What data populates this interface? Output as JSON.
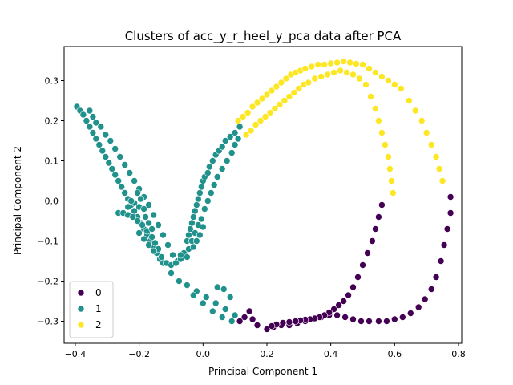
{
  "chart_data": {
    "type": "scatter",
    "title": "Clusters of acc_y_r_heel_y_pca data after PCA",
    "xlabel": "Principal Component 1",
    "ylabel": "Principal Component 2",
    "xlim": [
      -0.435,
      0.81
    ],
    "ylim": [
      -0.355,
      0.385
    ],
    "xticks": [
      -0.4,
      -0.2,
      0.0,
      0.2,
      0.4,
      0.6,
      0.8
    ],
    "xtick_labels": [
      "−0.4",
      "−0.2",
      "0.0",
      "0.2",
      "0.4",
      "0.6",
      "0.8"
    ],
    "yticks": [
      -0.3,
      -0.2,
      -0.1,
      0.0,
      0.1,
      0.2,
      0.3
    ],
    "ytick_labels": [
      "−0.3",
      "−0.2",
      "−0.1",
      "0.0",
      "0.1",
      "0.2",
      "0.3"
    ],
    "grid": false,
    "legend_position": "lower-left",
    "series": [
      {
        "name": "0",
        "color": "#440154",
        "points": [
          [
            0.775,
            0.01
          ],
          [
            0.775,
            -0.03
          ],
          [
            0.765,
            -0.07
          ],
          [
            0.755,
            -0.11
          ],
          [
            0.745,
            -0.15
          ],
          [
            0.73,
            -0.19
          ],
          [
            0.715,
            -0.22
          ],
          [
            0.695,
            -0.245
          ],
          [
            0.675,
            -0.265
          ],
          [
            0.65,
            -0.28
          ],
          [
            0.625,
            -0.29
          ],
          [
            0.6,
            -0.295
          ],
          [
            0.575,
            -0.3
          ],
          [
            0.55,
            -0.3
          ],
          [
            0.52,
            -0.3
          ],
          [
            0.495,
            -0.3
          ],
          [
            0.47,
            -0.295
          ],
          [
            0.445,
            -0.29
          ],
          [
            0.42,
            -0.285
          ],
          [
            0.395,
            -0.285
          ],
          [
            0.37,
            -0.29
          ],
          [
            0.345,
            -0.295
          ],
          [
            0.32,
            -0.3
          ],
          [
            0.295,
            -0.305
          ],
          [
            0.27,
            -0.31
          ],
          [
            0.245,
            -0.31
          ],
          [
            0.22,
            -0.315
          ],
          [
            0.2,
            -0.32
          ],
          [
            0.56,
            -0.01
          ],
          [
            0.55,
            -0.04
          ],
          [
            0.54,
            -0.07
          ],
          [
            0.53,
            -0.1
          ],
          [
            0.515,
            -0.13
          ],
          [
            0.5,
            -0.16
          ],
          [
            0.485,
            -0.19
          ],
          [
            0.47,
            -0.215
          ],
          [
            0.455,
            -0.235
          ],
          [
            0.44,
            -0.25
          ],
          [
            0.425,
            -0.26
          ],
          [
            0.41,
            -0.27
          ],
          [
            0.395,
            -0.278
          ],
          [
            0.38,
            -0.285
          ],
          [
            0.365,
            -0.29
          ],
          [
            0.35,
            -0.293
          ],
          [
            0.335,
            -0.295
          ],
          [
            0.32,
            -0.296
          ],
          [
            0.305,
            -0.298
          ],
          [
            0.29,
            -0.3
          ],
          [
            0.27,
            -0.302
          ],
          [
            0.25,
            -0.304
          ],
          [
            0.23,
            -0.308
          ],
          [
            0.215,
            -0.312
          ],
          [
            0.17,
            -0.31
          ],
          [
            0.155,
            -0.295
          ],
          [
            0.145,
            -0.275
          ],
          [
            0.13,
            -0.29
          ],
          [
            0.115,
            -0.3
          ]
        ]
      },
      {
        "name": "1",
        "color": "#21918c",
        "points": [
          [
            -0.395,
            0.235
          ],
          [
            -0.385,
            0.225
          ],
          [
            -0.375,
            0.215
          ],
          [
            -0.365,
            0.2
          ],
          [
            -0.355,
            0.185
          ],
          [
            -0.345,
            0.17
          ],
          [
            -0.335,
            0.155
          ],
          [
            -0.325,
            0.14
          ],
          [
            -0.315,
            0.125
          ],
          [
            -0.305,
            0.11
          ],
          [
            -0.295,
            0.095
          ],
          [
            -0.285,
            0.08
          ],
          [
            -0.275,
            0.065
          ],
          [
            -0.265,
            0.05
          ],
          [
            -0.255,
            0.035
          ],
          [
            -0.245,
            0.02
          ],
          [
            -0.235,
            0.005
          ],
          [
            -0.225,
            -0.01
          ],
          [
            -0.215,
            -0.025
          ],
          [
            -0.205,
            -0.04
          ],
          [
            -0.195,
            -0.055
          ],
          [
            -0.185,
            -0.07
          ],
          [
            -0.175,
            -0.085
          ],
          [
            -0.165,
            -0.1
          ],
          [
            -0.155,
            -0.115
          ],
          [
            -0.145,
            -0.13
          ],
          [
            -0.135,
            -0.145
          ],
          [
            -0.125,
            -0.155
          ],
          [
            -0.355,
            0.225
          ],
          [
            -0.345,
            0.21
          ],
          [
            -0.335,
            0.195
          ],
          [
            -0.32,
            0.185
          ],
          [
            -0.305,
            0.165
          ],
          [
            -0.29,
            0.15
          ],
          [
            -0.275,
            0.13
          ],
          [
            -0.26,
            0.11
          ],
          [
            -0.245,
            0.09
          ],
          [
            -0.23,
            0.07
          ],
          [
            -0.215,
            0.05
          ],
          [
            -0.2,
            0.03
          ],
          [
            -0.185,
            0.01
          ],
          [
            -0.17,
            -0.01
          ],
          [
            -0.155,
            -0.035
          ],
          [
            -0.14,
            -0.06
          ],
          [
            -0.125,
            -0.085
          ],
          [
            -0.11,
            -0.11
          ],
          [
            -0.095,
            -0.135
          ],
          [
            -0.08,
            -0.15
          ],
          [
            -0.265,
            -0.03
          ],
          [
            -0.25,
            -0.03
          ],
          [
            -0.235,
            -0.035
          ],
          [
            -0.22,
            -0.04
          ],
          [
            -0.205,
            -0.05
          ],
          [
            -0.19,
            -0.06
          ],
          [
            -0.175,
            -0.075
          ],
          [
            -0.16,
            -0.09
          ],
          [
            -0.15,
            -0.105
          ],
          [
            -0.14,
            -0.12
          ],
          [
            -0.13,
            -0.14
          ],
          [
            -0.115,
            -0.155
          ],
          [
            -0.1,
            -0.16
          ],
          [
            -0.085,
            -0.155
          ],
          [
            -0.07,
            -0.145
          ],
          [
            -0.055,
            -0.13
          ],
          [
            -0.2,
            -0.015
          ],
          [
            -0.195,
            0.005
          ],
          [
            -0.205,
            0.02
          ],
          [
            -0.215,
            -0.005
          ],
          [
            -0.185,
            -0.02
          ],
          [
            -0.225,
            0.0
          ],
          [
            -0.235,
            -0.015
          ],
          [
            -0.18,
            -0.04
          ],
          [
            -0.17,
            -0.055
          ],
          [
            -0.16,
            -0.07
          ],
          [
            -0.2,
            -0.08
          ],
          [
            -0.185,
            -0.095
          ],
          [
            -0.17,
            -0.11
          ],
          [
            -0.155,
            -0.125
          ],
          [
            -0.05,
            -0.1
          ],
          [
            -0.045,
            -0.085
          ],
          [
            -0.04,
            -0.07
          ],
          [
            -0.035,
            -0.055
          ],
          [
            -0.03,
            -0.04
          ],
          [
            -0.025,
            -0.025
          ],
          [
            -0.02,
            -0.01
          ],
          [
            -0.015,
            0.005
          ],
          [
            -0.01,
            0.02
          ],
          [
            -0.005,
            0.035
          ],
          [
            0.0,
            0.05
          ],
          [
            0.005,
            0.06
          ],
          [
            0.015,
            0.07
          ],
          [
            0.02,
            0.085
          ],
          [
            0.03,
            0.1
          ],
          [
            0.04,
            0.115
          ],
          [
            0.05,
            0.125
          ],
          [
            0.06,
            0.135
          ],
          [
            0.07,
            0.15
          ],
          [
            0.085,
            0.16
          ],
          [
            0.1,
            0.17
          ],
          [
            0.115,
            0.185
          ],
          [
            -0.06,
            -0.13
          ],
          [
            -0.045,
            -0.12
          ],
          [
            -0.035,
            -0.1
          ],
          [
            -0.025,
            -0.08
          ],
          [
            -0.015,
            -0.06
          ],
          [
            -0.005,
            -0.045
          ],
          [
            0.005,
            -0.02
          ],
          [
            0.015,
            0.0
          ],
          [
            0.025,
            0.02
          ],
          [
            0.035,
            0.04
          ],
          [
            0.045,
            0.06
          ],
          [
            0.06,
            0.08
          ],
          [
            0.075,
            0.1
          ],
          [
            0.09,
            0.12
          ],
          [
            0.1,
            0.14
          ],
          [
            0.11,
            0.155
          ],
          [
            -0.02,
            -0.1
          ],
          [
            -0.01,
            -0.085
          ],
          [
            0.0,
            -0.065
          ],
          [
            -0.03,
            -0.115
          ],
          [
            -0.05,
            -0.14
          ],
          [
            -0.07,
            -0.135
          ],
          [
            -0.1,
            -0.18
          ],
          [
            -0.075,
            -0.2
          ],
          [
            -0.05,
            -0.21
          ],
          [
            -0.02,
            -0.225
          ],
          [
            0.01,
            -0.24
          ],
          [
            0.04,
            -0.255
          ],
          [
            0.07,
            -0.27
          ],
          [
            -0.03,
            -0.235
          ],
          [
            0.0,
            -0.255
          ],
          [
            0.03,
            -0.275
          ],
          [
            0.06,
            -0.29
          ],
          [
            0.09,
            -0.3
          ],
          [
            0.1,
            -0.285
          ],
          [
            0.085,
            -0.24
          ],
          [
            0.065,
            -0.22
          ],
          [
            0.045,
            -0.215
          ]
        ]
      },
      {
        "name": "2",
        "color": "#fde725",
        "points": [
          [
            0.11,
            0.2
          ],
          [
            0.125,
            0.21
          ],
          [
            0.14,
            0.22
          ],
          [
            0.155,
            0.235
          ],
          [
            0.17,
            0.245
          ],
          [
            0.185,
            0.255
          ],
          [
            0.2,
            0.265
          ],
          [
            0.215,
            0.275
          ],
          [
            0.23,
            0.285
          ],
          [
            0.245,
            0.295
          ],
          [
            0.26,
            0.305
          ],
          [
            0.275,
            0.315
          ],
          [
            0.29,
            0.32
          ],
          [
            0.305,
            0.325
          ],
          [
            0.32,
            0.33
          ],
          [
            0.34,
            0.335
          ],
          [
            0.36,
            0.34
          ],
          [
            0.38,
            0.34
          ],
          [
            0.4,
            0.343
          ],
          [
            0.42,
            0.345
          ],
          [
            0.44,
            0.348
          ],
          [
            0.46,
            0.345
          ],
          [
            0.48,
            0.342
          ],
          [
            0.5,
            0.34
          ],
          [
            0.52,
            0.33
          ],
          [
            0.54,
            0.32
          ],
          [
            0.56,
            0.31
          ],
          [
            0.58,
            0.3
          ],
          [
            0.6,
            0.29
          ],
          [
            0.62,
            0.28
          ],
          [
            0.645,
            0.25
          ],
          [
            0.665,
            0.225
          ],
          [
            0.685,
            0.2
          ],
          [
            0.7,
            0.17
          ],
          [
            0.715,
            0.14
          ],
          [
            0.73,
            0.11
          ],
          [
            0.74,
            0.08
          ],
          [
            0.75,
            0.05
          ],
          [
            0.135,
            0.165
          ],
          [
            0.15,
            0.175
          ],
          [
            0.165,
            0.19
          ],
          [
            0.18,
            0.2
          ],
          [
            0.195,
            0.21
          ],
          [
            0.21,
            0.22
          ],
          [
            0.225,
            0.23
          ],
          [
            0.24,
            0.24
          ],
          [
            0.255,
            0.25
          ],
          [
            0.27,
            0.26
          ],
          [
            0.285,
            0.27
          ],
          [
            0.3,
            0.28
          ],
          [
            0.315,
            0.29
          ],
          [
            0.33,
            0.295
          ],
          [
            0.35,
            0.305
          ],
          [
            0.37,
            0.31
          ],
          [
            0.39,
            0.315
          ],
          [
            0.41,
            0.32
          ],
          [
            0.43,
            0.325
          ],
          [
            0.45,
            0.32
          ],
          [
            0.47,
            0.315
          ],
          [
            0.49,
            0.305
          ],
          [
            0.51,
            0.29
          ],
          [
            0.525,
            0.26
          ],
          [
            0.54,
            0.23
          ],
          [
            0.55,
            0.2
          ],
          [
            0.56,
            0.17
          ],
          [
            0.57,
            0.14
          ],
          [
            0.58,
            0.11
          ],
          [
            0.585,
            0.08
          ],
          [
            0.59,
            0.05
          ],
          [
            0.595,
            0.02
          ]
        ]
      }
    ]
  }
}
